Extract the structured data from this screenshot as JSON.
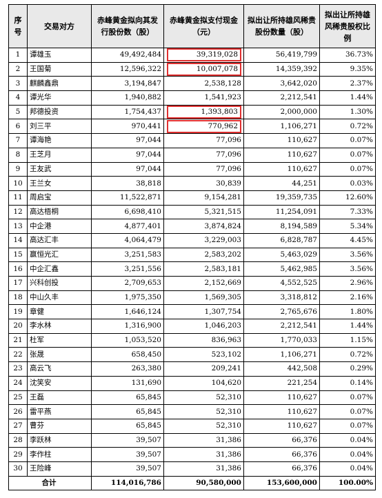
{
  "headers": [
    "序号",
    "交易对方",
    "赤峰黄金拟向其发行股份数（股）",
    "赤峰黄金拟支付现金（元）",
    "拟出让所持雄风稀贵股份数量（股）",
    "拟出让所持雄风稀贵股权比例"
  ],
  "highlight_color": "#e03030",
  "rows": [
    {
      "no": "1",
      "name": "谭雄玉",
      "shares": "49,492,484",
      "cash": "39,319,028",
      "transfer": "56,419,799",
      "ratio": "36.73%",
      "hl": true
    },
    {
      "no": "2",
      "name": "王国菊",
      "shares": "12,596,322",
      "cash": "10,007,078",
      "transfer": "14,359,392",
      "ratio": "9.35%",
      "hl": true
    },
    {
      "no": "3",
      "name": "麒麟鑫鼎",
      "shares": "3,194,847",
      "cash": "2,538,128",
      "transfer": "3,642,020",
      "ratio": "2.37%",
      "hl": false
    },
    {
      "no": "4",
      "name": "谭光华",
      "shares": "1,940,882",
      "cash": "1,541,923",
      "transfer": "2,212,541",
      "ratio": "1.44%",
      "hl": false
    },
    {
      "no": "5",
      "name": "邦德投资",
      "shares": "1,754,437",
      "cash": "1,393,803",
      "transfer": "2,000,000",
      "ratio": "1.30%",
      "hl": true
    },
    {
      "no": "6",
      "name": "刘三平",
      "shares": "970,441",
      "cash": "770,962",
      "transfer": "1,106,271",
      "ratio": "0.72%",
      "hl": true
    },
    {
      "no": "7",
      "name": "谭海艳",
      "shares": "97,044",
      "cash": "77,096",
      "transfer": "110,627",
      "ratio": "0.07%",
      "hl": false
    },
    {
      "no": "8",
      "name": "王芝月",
      "shares": "97,044",
      "cash": "77,096",
      "transfer": "110,627",
      "ratio": "0.07%",
      "hl": false
    },
    {
      "no": "9",
      "name": "王友武",
      "shares": "97,044",
      "cash": "77,096",
      "transfer": "110,627",
      "ratio": "0.07%",
      "hl": false
    },
    {
      "no": "10",
      "name": "王兰女",
      "shares": "38,818",
      "cash": "30,839",
      "transfer": "44,251",
      "ratio": "0.03%",
      "hl": false
    },
    {
      "no": "11",
      "name": "周启宝",
      "shares": "11,522,871",
      "cash": "9,154,281",
      "transfer": "19,359,735",
      "ratio": "12.60%",
      "hl": false
    },
    {
      "no": "12",
      "name": "高达梧桐",
      "shares": "6,698,410",
      "cash": "5,321,515",
      "transfer": "11,254,091",
      "ratio": "7.33%",
      "hl": false
    },
    {
      "no": "13",
      "name": "中企港",
      "shares": "4,877,401",
      "cash": "3,874,824",
      "transfer": "8,194,589",
      "ratio": "5.34%",
      "hl": false
    },
    {
      "no": "14",
      "name": "高达汇丰",
      "shares": "4,064,479",
      "cash": "3,229,003",
      "transfer": "6,828,787",
      "ratio": "4.45%",
      "hl": false
    },
    {
      "no": "15",
      "name": "赢恒光汇",
      "shares": "3,251,583",
      "cash": "2,583,202",
      "transfer": "5,463,029",
      "ratio": "3.56%",
      "hl": false
    },
    {
      "no": "16",
      "name": "中企汇鑫",
      "shares": "3,251,556",
      "cash": "2,583,181",
      "transfer": "5,462,985",
      "ratio": "3.56%",
      "hl": false
    },
    {
      "no": "17",
      "name": "兴科创投",
      "shares": "2,709,653",
      "cash": "2,152,669",
      "transfer": "4,552,525",
      "ratio": "2.96%",
      "hl": false
    },
    {
      "no": "18",
      "name": "中山久丰",
      "shares": "1,975,350",
      "cash": "1,569,305",
      "transfer": "3,318,812",
      "ratio": "2.16%",
      "hl": false
    },
    {
      "no": "19",
      "name": "章健",
      "shares": "1,646,124",
      "cash": "1,307,754",
      "transfer": "2,765,676",
      "ratio": "1.80%",
      "hl": false
    },
    {
      "no": "20",
      "name": "李水林",
      "shares": "1,316,900",
      "cash": "1,046,203",
      "transfer": "2,212,541",
      "ratio": "1.44%",
      "hl": false
    },
    {
      "no": "21",
      "name": "杜军",
      "shares": "1,053,520",
      "cash": "836,963",
      "transfer": "1,770,033",
      "ratio": "1.15%",
      "hl": false
    },
    {
      "no": "22",
      "name": "张晟",
      "shares": "658,450",
      "cash": "523,102",
      "transfer": "1,106,271",
      "ratio": "0.72%",
      "hl": false
    },
    {
      "no": "23",
      "name": "高云飞",
      "shares": "263,380",
      "cash": "209,241",
      "transfer": "442,508",
      "ratio": "0.29%",
      "hl": false
    },
    {
      "no": "24",
      "name": "沈笑安",
      "shares": "131,690",
      "cash": "104,620",
      "transfer": "221,254",
      "ratio": "0.14%",
      "hl": false
    },
    {
      "no": "25",
      "name": "王磊",
      "shares": "65,845",
      "cash": "52,310",
      "transfer": "110,627",
      "ratio": "0.07%",
      "hl": false
    },
    {
      "no": "26",
      "name": "雷平燕",
      "shares": "65,845",
      "cash": "52,310",
      "transfer": "110,627",
      "ratio": "0.07%",
      "hl": false
    },
    {
      "no": "27",
      "name": "曹芬",
      "shares": "65,845",
      "cash": "52,310",
      "transfer": "110,627",
      "ratio": "0.07%",
      "hl": false
    },
    {
      "no": "28",
      "name": "李跃林",
      "shares": "39,507",
      "cash": "31,386",
      "transfer": "66,376",
      "ratio": "0.04%",
      "hl": false
    },
    {
      "no": "29",
      "name": "李作柱",
      "shares": "39,507",
      "cash": "31,386",
      "transfer": "66,376",
      "ratio": "0.04%",
      "hl": false
    },
    {
      "no": "30",
      "name": "王险峰",
      "shares": "39,507",
      "cash": "31,386",
      "transfer": "66,376",
      "ratio": "0.04%",
      "hl": false
    }
  ],
  "total": {
    "label": "合计",
    "shares": "114,016,786",
    "cash": "90,580,000",
    "transfer": "153,600,000",
    "ratio": "100.00%"
  }
}
